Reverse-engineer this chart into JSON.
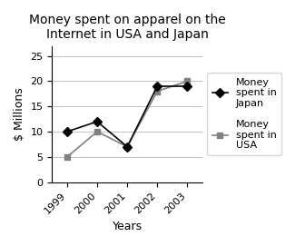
{
  "title": "Money spent on apparel on the\nInternet in USA and Japan",
  "xlabel": "Years",
  "ylabel": "$ Millions",
  "years": [
    1999,
    2000,
    2001,
    2002,
    2003
  ],
  "japan": [
    10,
    12,
    7,
    19,
    19
  ],
  "usa": [
    5,
    10,
    7,
    18,
    20
  ],
  "japan_label": "Money\nspent in\nJapan",
  "usa_label": "Money\nspent in\nUSA",
  "japan_color": "#000000",
  "usa_color": "#808080",
  "ylim": [
    0,
    27
  ],
  "yticks": [
    0,
    5,
    10,
    15,
    20,
    25
  ],
  "title_fontsize": 10,
  "axis_label_fontsize": 9,
  "tick_fontsize": 8,
  "legend_fontsize": 8,
  "background_color": "#ffffff"
}
